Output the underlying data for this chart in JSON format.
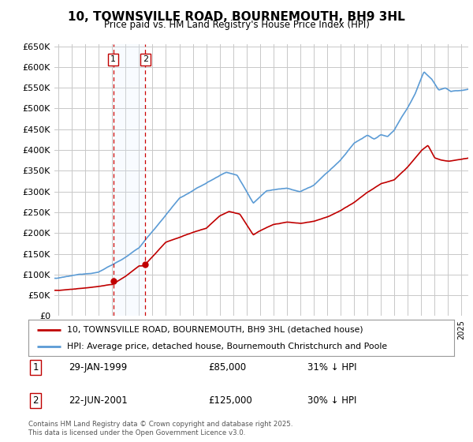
{
  "title": "10, TOWNSVILLE ROAD, BOURNEMOUTH, BH9 3HL",
  "subtitle": "Price paid vs. HM Land Registry's House Price Index (HPI)",
  "ylabel_ticks": [
    "£0",
    "£50K",
    "£100K",
    "£150K",
    "£200K",
    "£250K",
    "£300K",
    "£350K",
    "£400K",
    "£450K",
    "£500K",
    "£550K",
    "£600K",
    "£650K"
  ],
  "ytick_values": [
    0,
    50000,
    100000,
    150000,
    200000,
    250000,
    300000,
    350000,
    400000,
    450000,
    500000,
    550000,
    600000,
    650000
  ],
  "hpi_color": "#5b9bd5",
  "price_color": "#c00000",
  "background_color": "#ffffff",
  "grid_color": "#c8c8c8",
  "legend1": "10, TOWNSVILLE ROAD, BOURNEMOUTH, BH9 3HL (detached house)",
  "legend2": "HPI: Average price, detached house, Bournemouth Christchurch and Poole",
  "transaction1_date": "29-JAN-1999",
  "transaction1_price": 85000,
  "transaction1_label": "31% ↓ HPI",
  "transaction1_num": "1",
  "transaction1_year": 1999.08,
  "transaction2_date": "22-JUN-2001",
  "transaction2_price": 125000,
  "transaction2_label": "30% ↓ HPI",
  "transaction2_num": "2",
  "transaction2_year": 2001.47,
  "footer": "Contains HM Land Registry data © Crown copyright and database right 2025.\nThis data is licensed under the Open Government Licence v3.0.",
  "xmin": 1994.7,
  "xmax": 2025.5,
  "ymin": 0,
  "ymax": 650000,
  "shade_color": "#ddeeff",
  "vline_color": "#cc0000"
}
